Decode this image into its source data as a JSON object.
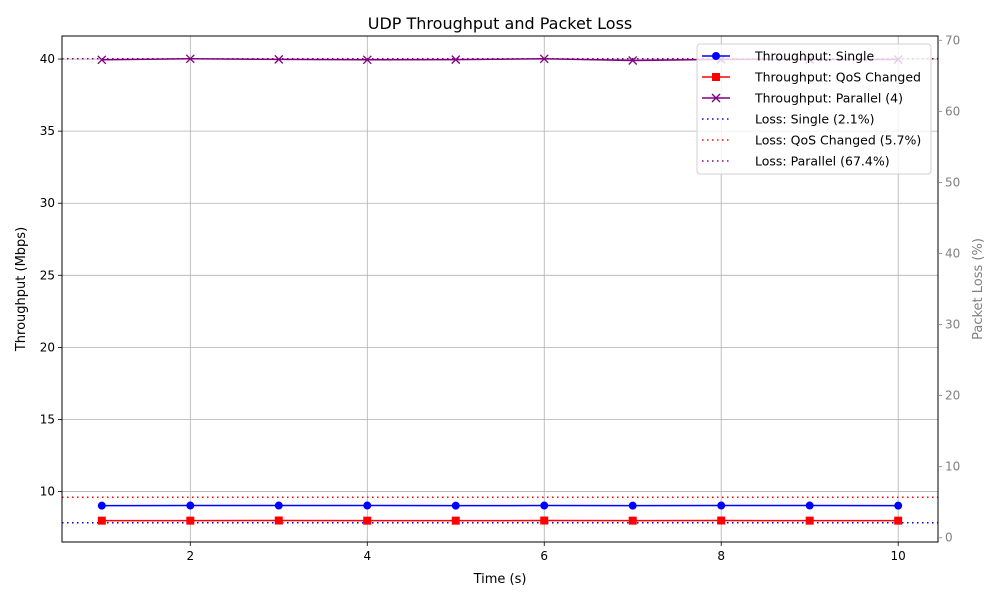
{
  "chart_data": {
    "type": "line",
    "title": "UDP Throughput and Packet Loss",
    "xlabel": "Time (s)",
    "ylabel": "Throughput (Mbps)",
    "y2label": "Packet Loss (%)",
    "x": [
      1,
      2,
      3,
      4,
      5,
      6,
      7,
      8,
      9,
      10
    ],
    "xlim": [
      0.55,
      10.45
    ],
    "ylim": [
      6.5,
      41.6
    ],
    "y2lim": [
      -0.6,
      70.6
    ],
    "xticks": [
      2,
      4,
      6,
      8,
      10
    ],
    "yticks": [
      10,
      15,
      20,
      25,
      30,
      35,
      40
    ],
    "y2ticks": [
      0,
      10,
      20,
      30,
      40,
      50,
      60,
      70
    ],
    "grid": true,
    "legend_position": "top-right",
    "series": [
      {
        "name": "Throughput: Single",
        "axis": "left",
        "color": "#0000ff",
        "marker": "circle",
        "style": "solid",
        "values": [
          9.02,
          9.03,
          9.03,
          9.03,
          9.02,
          9.03,
          9.02,
          9.03,
          9.03,
          9.02
        ]
      },
      {
        "name": "Throughput: QoS Changed",
        "axis": "left",
        "color": "#ff0000",
        "marker": "square",
        "style": "solid",
        "values": [
          7.98,
          7.98,
          7.99,
          7.98,
          7.98,
          7.99,
          7.98,
          7.99,
          7.98,
          7.98
        ]
      },
      {
        "name": "Throughput: Parallel (4)",
        "axis": "left",
        "color": "#800080",
        "marker": "x",
        "style": "solid",
        "values": [
          39.95,
          40.02,
          39.98,
          39.95,
          39.96,
          40.02,
          39.9,
          39.98,
          39.97,
          39.97
        ]
      }
    ],
    "hlines": [
      {
        "name": "Loss: Single (2.1%)",
        "axis": "right",
        "color": "#0000ff",
        "style": "dotted",
        "value": 2.1
      },
      {
        "name": "Loss: QoS Changed (5.7%)",
        "axis": "right",
        "color": "#ff0000",
        "style": "dotted",
        "value": 5.7
      },
      {
        "name": "Loss: Parallel (67.4%)",
        "axis": "right",
        "color": "#800080",
        "style": "dotted",
        "value": 67.4
      }
    ]
  }
}
